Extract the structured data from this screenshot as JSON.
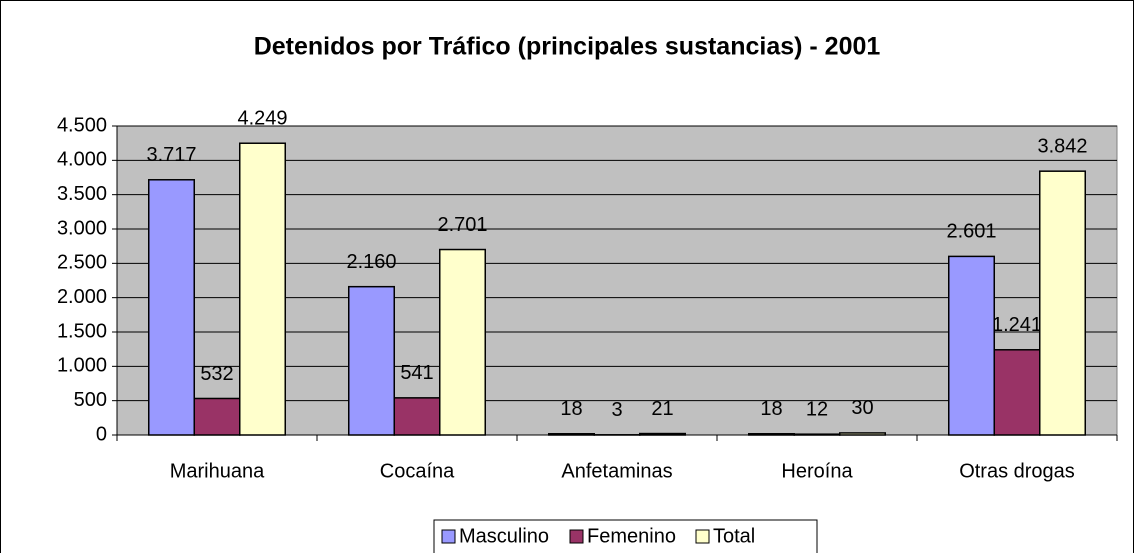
{
  "chart_data": {
    "type": "bar",
    "title": "Detenidos por Tráfico (principales sustancias) - 2001",
    "categories": [
      "Marihuana",
      "Cocaína",
      "Anfetaminas",
      "Heroína",
      "Otras drogas"
    ],
    "series": [
      {
        "name": "Masculino",
        "color": "#9999ff",
        "values": [
          3717,
          2160,
          18,
          18,
          2601
        ],
        "value_labels": [
          "3.717",
          "2.160",
          "18",
          "18",
          "2.601"
        ]
      },
      {
        "name": "Femenino",
        "color": "#993366",
        "values": [
          532,
          541,
          3,
          12,
          1241
        ],
        "value_labels": [
          "532",
          "541",
          "3",
          "12",
          "1.241"
        ]
      },
      {
        "name": "Total",
        "color": "#ffffcc",
        "values": [
          4249,
          2701,
          21,
          30,
          3842
        ],
        "value_labels": [
          "4.249",
          "2.701",
          "21",
          "30",
          "3.842"
        ]
      }
    ],
    "ylim": [
      0,
      4500
    ],
    "yticks": [
      0,
      500,
      {
        "value": 1000,
        "label": "1.000"
      },
      {
        "value": 1500,
        "label": "1.500"
      },
      {
        "value": 2000,
        "label": "2.000"
      },
      {
        "value": 2500,
        "label": "2.500"
      },
      {
        "value": 3000,
        "label": "3.000"
      },
      {
        "value": 3500,
        "label": "3.500"
      },
      {
        "value": 4000,
        "label": "4.000"
      },
      {
        "value": 4500,
        "label": "4.500"
      }
    ],
    "grid": true,
    "legend": "bottom"
  }
}
